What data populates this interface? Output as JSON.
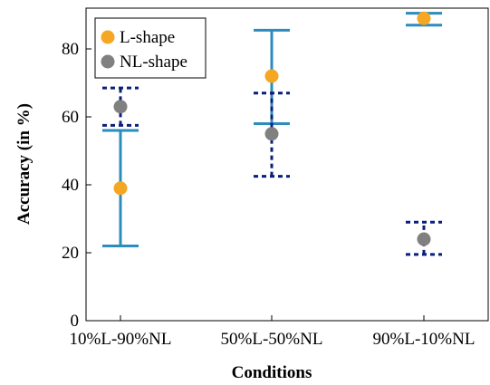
{
  "chart_data": {
    "type": "scatter",
    "title": "",
    "xlabel": "Conditions",
    "ylabel": "Accuracy (in %)",
    "categories": [
      "10%L-90%NL",
      "50%L-50%NL",
      "90%L-10%NL"
    ],
    "ylim": [
      0,
      92
    ],
    "yticks": [
      0,
      20,
      40,
      60,
      80
    ],
    "grid": false,
    "legend_position": "top-left",
    "series": [
      {
        "name": "L-shape",
        "color": "#f5a623",
        "error_color": "#2b8cbe",
        "error_style": "solid",
        "values": [
          39,
          72,
          89
        ],
        "lower": [
          22,
          58,
          87
        ],
        "upper": [
          56,
          85.5,
          90.5
        ]
      },
      {
        "name": "NL-shape",
        "color": "#808080",
        "error_color": "#0a1f7a",
        "error_style": "dashed",
        "values": [
          63,
          55,
          24
        ],
        "lower": [
          57.5,
          42.5,
          19.5
        ],
        "upper": [
          68.5,
          67,
          29
        ]
      }
    ]
  }
}
